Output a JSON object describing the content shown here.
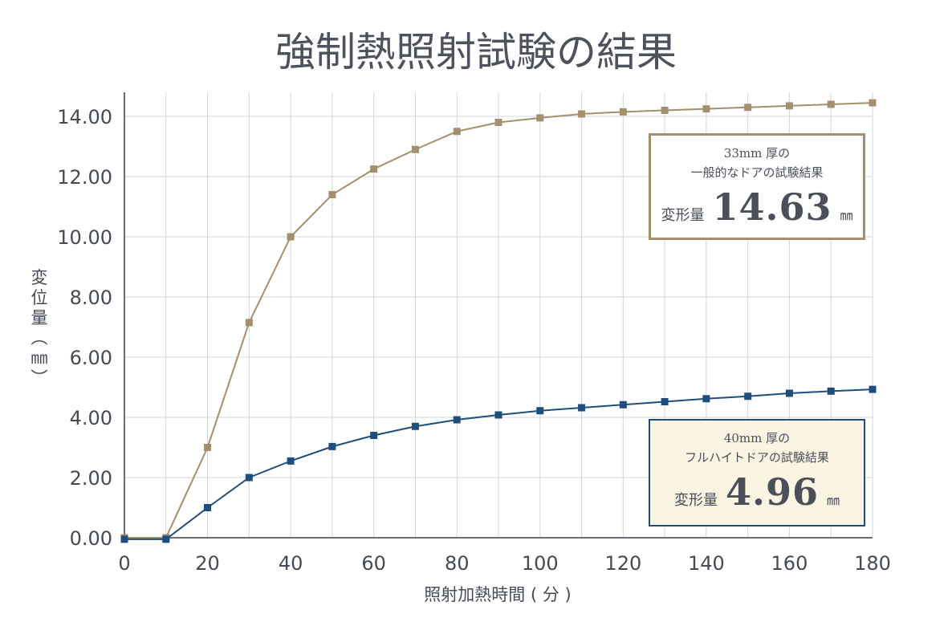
{
  "chart_data": {
    "type": "line",
    "title": "強制熱照射試験の結果",
    "xlabel": "照射加熱時間 ( 分 )",
    "ylabel": "変位量（㎜）",
    "xlim": [
      0,
      180
    ],
    "ylim": [
      0,
      14.8
    ],
    "x_ticks": [
      "0",
      "20",
      "40",
      "60",
      "80",
      "100",
      "120",
      "140",
      "160",
      "180"
    ],
    "y_ticks": [
      "0.00",
      "2.00",
      "4.00",
      "6.00",
      "8.00",
      "10.00",
      "12.00",
      "14.00"
    ],
    "grid": true,
    "x": [
      0,
      10,
      20,
      30,
      40,
      50,
      60,
      70,
      80,
      90,
      100,
      110,
      120,
      130,
      140,
      150,
      160,
      170,
      180
    ],
    "series": [
      {
        "color": "#a3906c",
        "values": [
          0.0,
          0.0,
          3.0,
          7.15,
          10.0,
          11.4,
          12.25,
          12.9,
          13.5,
          13.8,
          13.95,
          14.08,
          14.15,
          14.2,
          14.25,
          14.3,
          14.35,
          14.4,
          14.45
        ]
      },
      {
        "color": "#1f4e7d",
        "values": [
          -0.05,
          -0.05,
          1.0,
          2.0,
          2.55,
          3.03,
          3.4,
          3.7,
          3.92,
          4.08,
          4.22,
          4.32,
          4.42,
          4.52,
          4.62,
          4.7,
          4.8,
          4.87,
          4.93
        ]
      }
    ],
    "annotations": [
      {
        "line1": "33mm 厚の",
        "line2": "一般的なドアの試験結果",
        "label": "変形量",
        "value": "14.63",
        "unit": "㎜"
      },
      {
        "line1": "40mm 厚の",
        "line2": "フルハイトドアの試験結果",
        "label": "変形量",
        "value": "4.96",
        "unit": "㎜"
      }
    ]
  },
  "colors": {
    "grid": "#cfd6dc",
    "axis": "#3a3f47",
    "tan": "#a3906c",
    "navy": "#1f4e7d",
    "callout_b_bg": "#fbf4e3"
  }
}
